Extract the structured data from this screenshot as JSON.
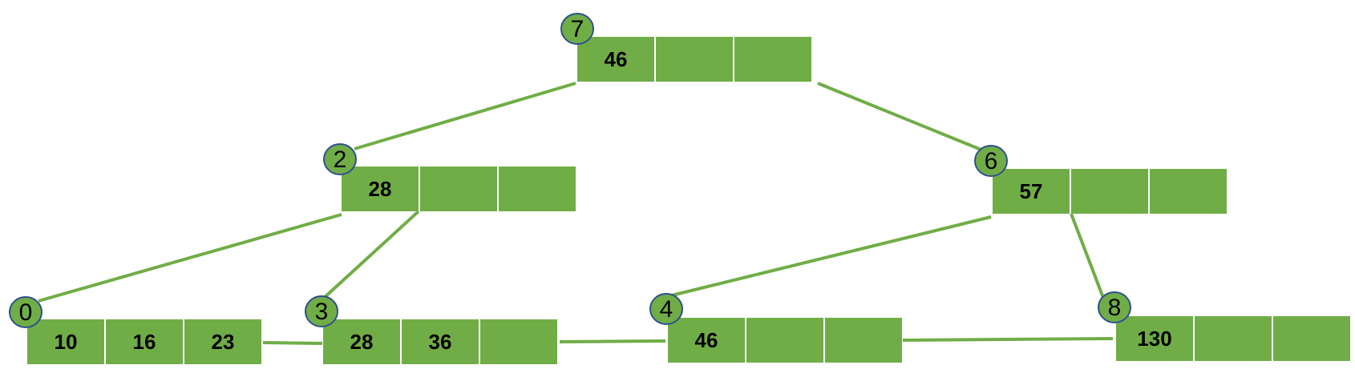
{
  "nodes": [
    {
      "id": "node-7",
      "label": "7",
      "keys": [
        "46",
        "",
        ""
      ]
    },
    {
      "id": "node-2",
      "label": "2",
      "keys": [
        "28",
        "",
        ""
      ]
    },
    {
      "id": "node-6",
      "label": "6",
      "keys": [
        "57",
        "",
        ""
      ]
    },
    {
      "id": "node-0",
      "label": "0",
      "keys": [
        "10",
        "16",
        "23"
      ]
    },
    {
      "id": "node-3",
      "label": "3",
      "keys": [
        "28",
        "36",
        ""
      ]
    },
    {
      "id": "node-4",
      "label": "4",
      "keys": [
        "46",
        "",
        ""
      ]
    },
    {
      "id": "node-8",
      "label": "8",
      "keys": [
        "130",
        "",
        ""
      ]
    }
  ],
  "edges": [
    {
      "from": "node-7",
      "to": "node-2",
      "kind": "child"
    },
    {
      "from": "node-7",
      "to": "node-6",
      "kind": "child"
    },
    {
      "from": "node-2",
      "to": "node-0",
      "kind": "child"
    },
    {
      "from": "node-2",
      "to": "node-3",
      "kind": "child"
    },
    {
      "from": "node-6",
      "to": "node-4",
      "kind": "child"
    },
    {
      "from": "node-6",
      "to": "node-8",
      "kind": "child"
    },
    {
      "from": "node-0",
      "to": "node-3",
      "kind": "leaf-link"
    },
    {
      "from": "node-3",
      "to": "node-4",
      "kind": "leaf-link"
    },
    {
      "from": "node-4",
      "to": "node-8",
      "kind": "leaf-link"
    }
  ],
  "colors": {
    "cell": "#70ad47",
    "badge_stroke": "#2f4f8f",
    "text": "#000000"
  }
}
